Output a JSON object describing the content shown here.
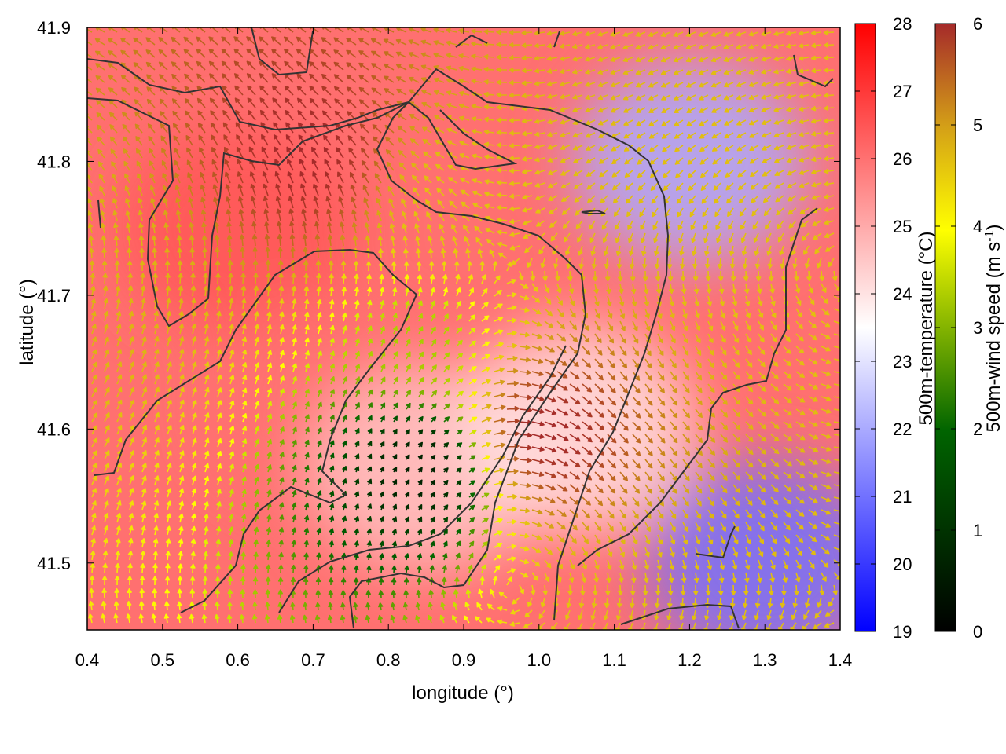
{
  "chart_data": {
    "type": "heatmap",
    "title": "",
    "xlabel": "longitude (°)",
    "ylabel": "latitude (°)",
    "xlim": [
      0.4,
      1.4
    ],
    "ylim": [
      41.45,
      41.9
    ],
    "x_ticks": [
      "0.4",
      "0.5",
      "0.6",
      "0.7",
      "0.8",
      "0.9",
      "1.0",
      "1.1",
      "1.2",
      "1.3",
      "1.4"
    ],
    "y_ticks": [
      "41.5",
      "41.6",
      "41.7",
      "41.8",
      "41.9"
    ],
    "overlay": "wind vectors (arrows) colored by 500m-wind speed, with terrain contour lines",
    "colorbars": [
      {
        "label": "500m-temperature (°C)",
        "range": [
          19,
          28
        ],
        "ticks": [
          "19",
          "20",
          "21",
          "22",
          "23",
          "24",
          "25",
          "26",
          "27",
          "28"
        ],
        "colors": [
          "#0000ff",
          "#ffffff",
          "#ff0000"
        ]
      },
      {
        "label": "500m-wind speed (m s-1)",
        "range": [
          0,
          6
        ],
        "ticks": [
          "0",
          "1",
          "2",
          "3",
          "4",
          "5",
          "6"
        ],
        "colors": [
          "#000000",
          "#006400",
          "#ffff00",
          "#d4a017",
          "#a52a2a"
        ]
      }
    ],
    "temperature_regions": [
      {
        "lon": 0.6,
        "lat": 41.75,
        "temperature": 26.5
      },
      {
        "lon": 0.72,
        "lat": 41.62,
        "temperature": 26
      },
      {
        "lon": 0.85,
        "lat": 41.57,
        "temperature": 24.5
      },
      {
        "lon": 1.2,
        "lat": 41.8,
        "temperature": 22
      },
      {
        "lon": 1.3,
        "lat": 41.5,
        "temperature": 21
      },
      {
        "lon": 1.05,
        "lat": 41.6,
        "temperature": 24
      }
    ],
    "wind_speed_regions": [
      {
        "lon": 0.84,
        "lat": 41.57,
        "speed": 0.5
      },
      {
        "lon": 0.84,
        "lat": 41.66,
        "speed": 2.5
      },
      {
        "lon": 0.88,
        "lat": 41.76,
        "speed": 4
      },
      {
        "lon": 1.3,
        "lat": 41.72,
        "speed": 4
      },
      {
        "lon": 0.43,
        "lat": 41.7,
        "speed": 4.2
      },
      {
        "lon": 1.12,
        "lat": 41.47,
        "speed": 4
      },
      {
        "lon": 0.7,
        "lat": 41.8,
        "speed": 6
      },
      {
        "lon": 1.0,
        "lat": 41.6,
        "speed": 6
      }
    ]
  }
}
